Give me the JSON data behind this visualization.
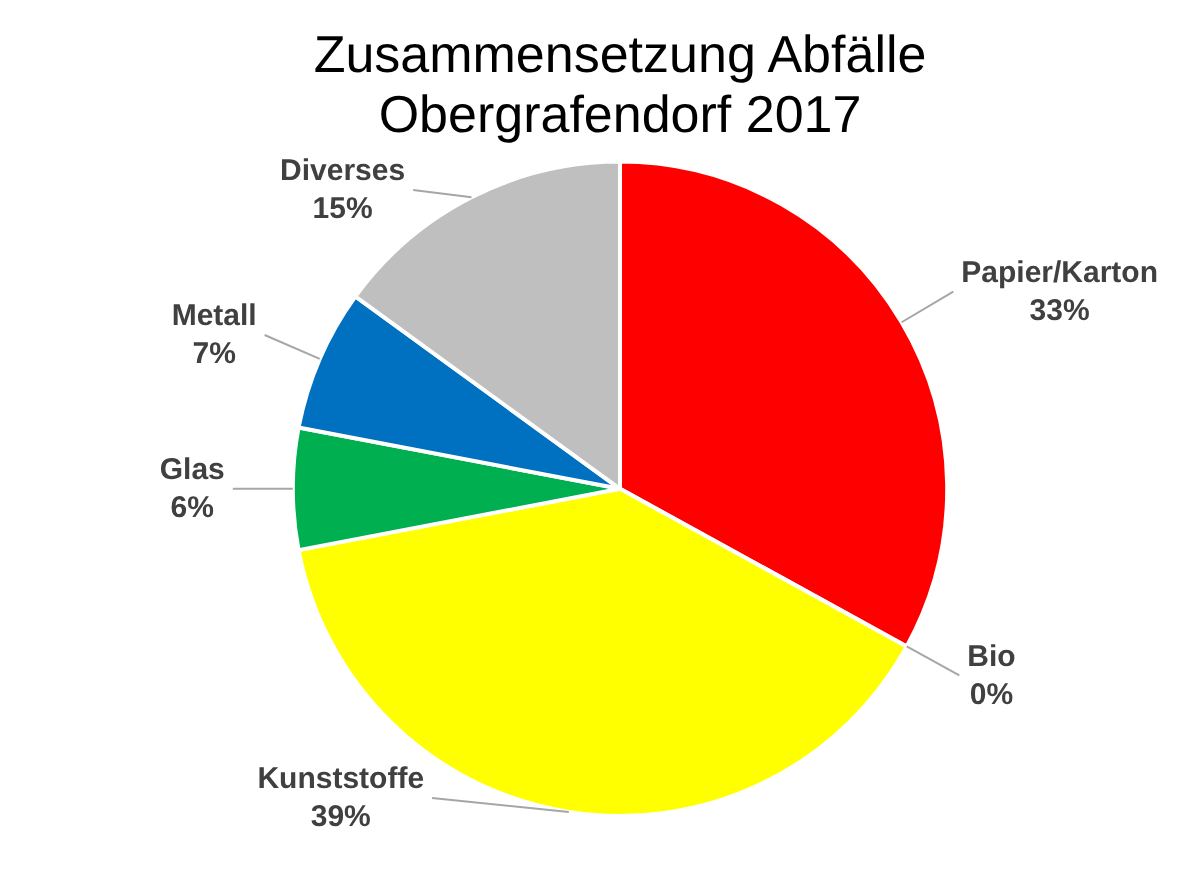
{
  "chart_data": {
    "type": "pie",
    "title": "Zusammensetzung Abfälle\nObergrafendorf 2017",
    "categories": [
      "Papier/Karton",
      "Bio",
      "Kunststoffe",
      "Glas",
      "Metall",
      "Diverses"
    ],
    "values": [
      33,
      0,
      39,
      6,
      7,
      15
    ],
    "colors": [
      "#ff0000",
      "#70ad47",
      "#ffff00",
      "#00b050",
      "#0070c0",
      "#bfbfbf"
    ],
    "value_labels": [
      "33%",
      "0%",
      "39%",
      "6%",
      "7%",
      "15%"
    ]
  }
}
